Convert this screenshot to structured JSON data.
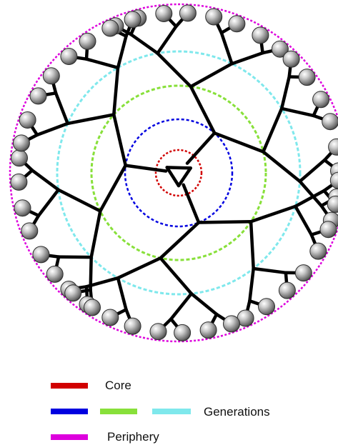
{
  "diagram": {
    "type": "dendrimer",
    "rings": [
      {
        "role": "Core",
        "color": "#d10000"
      },
      {
        "role": "Generation 1",
        "color": "#0000e0"
      },
      {
        "role": "Generation 2",
        "color": "#88e03a"
      },
      {
        "role": "Generation 3",
        "color": "#7fe8ec"
      },
      {
        "role": "Periphery",
        "color": "#dd00dd"
      }
    ],
    "branch_color": "#000000",
    "terminal_group": "grey-sphere",
    "terminal_count": 48
  },
  "legend": {
    "core": {
      "label": "Core",
      "color": "#d10000"
    },
    "generations": {
      "label": "Generations",
      "colors": [
        "#0000e0",
        "#88e03a",
        "#7fe8ec"
      ]
    },
    "periphery": {
      "label": "Periphery",
      "color": "#dd00dd"
    }
  }
}
